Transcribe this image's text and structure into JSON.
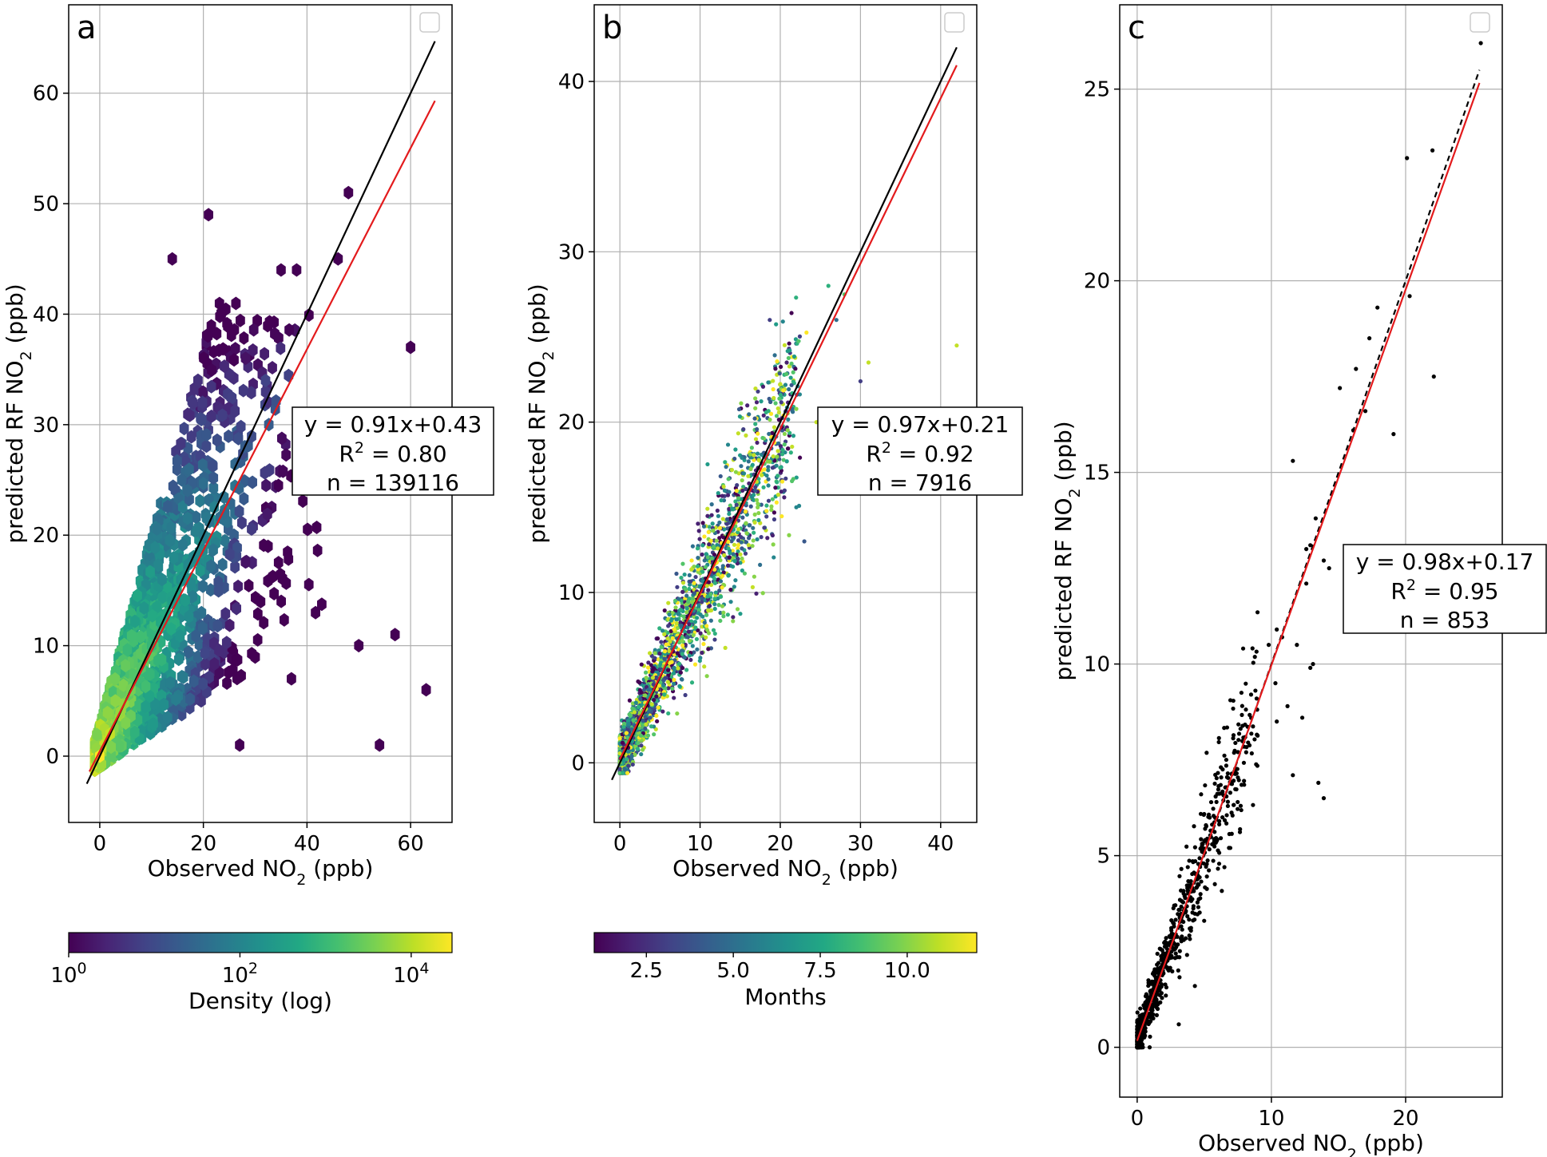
{
  "chart_data": [
    {
      "type": "scatter",
      "panel_label": "a",
      "rendering": "hexbin density",
      "xlabel": "Observed NO",
      "ylabel": "predicted RF NO",
      "label_subscript": "2",
      "label_unit": " (ppb)",
      "xlim": [
        -6,
        68
      ],
      "ylim": [
        -6,
        68
      ],
      "xticks": [
        0,
        20,
        40,
        60
      ],
      "yticks": [
        0,
        10,
        20,
        30,
        40,
        50,
        60
      ],
      "grid": true,
      "legend": "top-right (empty)",
      "fit": {
        "slope": 0.91,
        "intercept": 0.43,
        "text": "y = 0.91x+0.43",
        "r2_prefix": "R",
        "r2_value": " = 0.80",
        "n_text": "n = 139116"
      },
      "lines": [
        {
          "kind": "1:1",
          "color": "#000000",
          "x": [
            -2.5,
            64.7
          ]
        },
        {
          "kind": "fit",
          "color": "#e31a1c",
          "x": [
            -2,
            64.7
          ]
        }
      ],
      "colorbar": {
        "label": "Density (log)",
        "scale": "log",
        "range": [
          1,
          30000
        ],
        "ticks": [
          {
            "base": "10",
            "exp": "0",
            "value": 1
          },
          {
            "base": "10",
            "exp": "2",
            "value": 100
          },
          {
            "base": "10",
            "exp": "4",
            "value": 10000
          }
        ],
        "colormap": "viridis"
      },
      "bins": [
        [
          0,
          0,
          30000
        ],
        [
          2,
          2,
          12000
        ],
        [
          4,
          4,
          6000
        ],
        [
          6,
          6,
          3500
        ],
        [
          3,
          5,
          5000
        ],
        [
          5,
          3,
          4000
        ],
        [
          8,
          8,
          1800
        ],
        [
          10,
          10,
          900
        ],
        [
          12,
          12,
          500
        ],
        [
          14,
          14,
          300
        ],
        [
          16,
          16,
          180
        ],
        [
          18,
          18,
          120
        ],
        [
          20,
          20,
          80
        ],
        [
          24,
          22,
          40
        ],
        [
          28,
          28,
          20
        ],
        [
          32,
          34,
          8
        ],
        [
          46,
          45,
          1
        ],
        [
          21,
          49,
          1
        ],
        [
          60,
          37,
          1
        ],
        [
          63,
          6,
          1
        ],
        [
          54,
          1,
          1
        ],
        [
          57,
          11,
          1
        ],
        [
          50,
          10,
          1
        ],
        [
          14,
          45,
          1
        ],
        [
          35,
          44,
          1
        ],
        [
          38,
          44,
          1
        ],
        [
          48,
          51,
          1
        ],
        [
          27,
          1,
          1
        ],
        [
          37,
          7,
          1
        ]
      ],
      "wedge": [
        {
          "y_lo_slope": 0.3,
          "y_hi_slope": 1.7,
          "xmax": 44
        }
      ]
    },
    {
      "type": "scatter",
      "panel_label": "b",
      "xlabel": "Observed NO",
      "ylabel": "predicted RF NO",
      "label_subscript": "2",
      "label_unit": " (ppb)",
      "xlim": [
        -3.2,
        44.5
      ],
      "ylim": [
        -3.5,
        44.5
      ],
      "xticks": [
        0,
        10,
        20,
        30,
        40
      ],
      "yticks": [
        0,
        10,
        20,
        30,
        40
      ],
      "grid": true,
      "legend": "top-right (empty)",
      "fit": {
        "slope": 0.97,
        "intercept": 0.21,
        "text": "y = 0.97x+0.21",
        "r2_prefix": "R",
        "r2_value": " = 0.92",
        "n_text": "n = 7916"
      },
      "lines": [
        {
          "kind": "1:1",
          "color": "#000000",
          "x": [
            -1,
            42
          ]
        },
        {
          "kind": "fit",
          "color": "#e31a1c",
          "x": [
            0,
            42
          ]
        }
      ],
      "colorbar": {
        "label": "Months",
        "scale": "linear",
        "range": [
          1,
          12
        ],
        "ticks": [
          {
            "text": "2.5",
            "value": 2.5
          },
          {
            "text": "5.0",
            "value": 5
          },
          {
            "text": "7.5",
            "value": 7.5
          },
          {
            "text": "10.0",
            "value": 10
          }
        ],
        "colormap": "viridis"
      },
      "outliers": [
        [
          42,
          24.5,
          11
        ],
        [
          31,
          23.5,
          11
        ],
        [
          27,
          26,
          5
        ],
        [
          28,
          27.5,
          9
        ],
        [
          23,
          13,
          4
        ],
        [
          30,
          22.4,
          3
        ],
        [
          26,
          28,
          8
        ],
        [
          22,
          15,
          6
        ],
        [
          24.5,
          20,
          11
        ]
      ]
    },
    {
      "type": "scatter",
      "panel_label": "c",
      "xlabel": "Observed NO",
      "ylabel": "predicted RF NO",
      "label_subscript": "2",
      "label_unit": " (ppb)",
      "xlim": [
        -1.3,
        27.2
      ],
      "ylim": [
        -1.3,
        27.2
      ],
      "xticks": [
        0,
        10,
        20
      ],
      "yticks": [
        0,
        5,
        10,
        15,
        20,
        25
      ],
      "grid": true,
      "legend": "top-right (empty)",
      "fit": {
        "slope": 0.98,
        "intercept": 0.17,
        "text": "y = 0.98x+0.17",
        "r2_prefix": "R",
        "r2_value": " = 0.95",
        "n_text": "n = 853"
      },
      "lines": [
        {
          "kind": "1:1",
          "color": "#000000",
          "dashed": true,
          "x": [
            0,
            25.5
          ]
        },
        {
          "kind": "fit",
          "color": "#e31a1c",
          "x": [
            0,
            25.5
          ]
        }
      ],
      "points": [
        [
          25.6,
          26.2
        ],
        [
          22,
          23.4
        ],
        [
          20.1,
          23.2
        ],
        [
          20.3,
          19.6
        ],
        [
          17.9,
          19.3
        ],
        [
          17.3,
          18.5
        ],
        [
          16.3,
          17.7
        ],
        [
          22.1,
          17.5
        ],
        [
          15.1,
          17.2
        ],
        [
          17,
          16.6
        ],
        [
          16.1,
          16.1
        ],
        [
          19.1,
          16
        ],
        [
          11.6,
          15.3
        ],
        [
          13.3,
          13.8
        ],
        [
          12.9,
          13.1
        ],
        [
          12.6,
          13
        ],
        [
          14.3,
          12.5
        ],
        [
          13.9,
          12.7
        ],
        [
          12.6,
          12.1
        ],
        [
          10.4,
          10.9
        ],
        [
          10.8,
          10.7
        ],
        [
          11.9,
          10.5
        ],
        [
          9.8,
          10.5
        ],
        [
          13.1,
          10
        ],
        [
          12.9,
          9.9
        ],
        [
          10.3,
          9.5
        ],
        [
          11.2,
          8.9
        ],
        [
          12.3,
          8.6
        ],
        [
          13.5,
          6.9
        ],
        [
          13.9,
          6.5
        ],
        [
          11.6,
          7.1
        ],
        [
          10.4,
          8.5
        ],
        [
          8.9,
          9.1
        ],
        [
          6.5,
          4.7
        ],
        [
          4.3,
          1.6
        ],
        [
          3.1,
          0.6
        ],
        [
          0.1,
          0.1
        ]
      ]
    }
  ]
}
